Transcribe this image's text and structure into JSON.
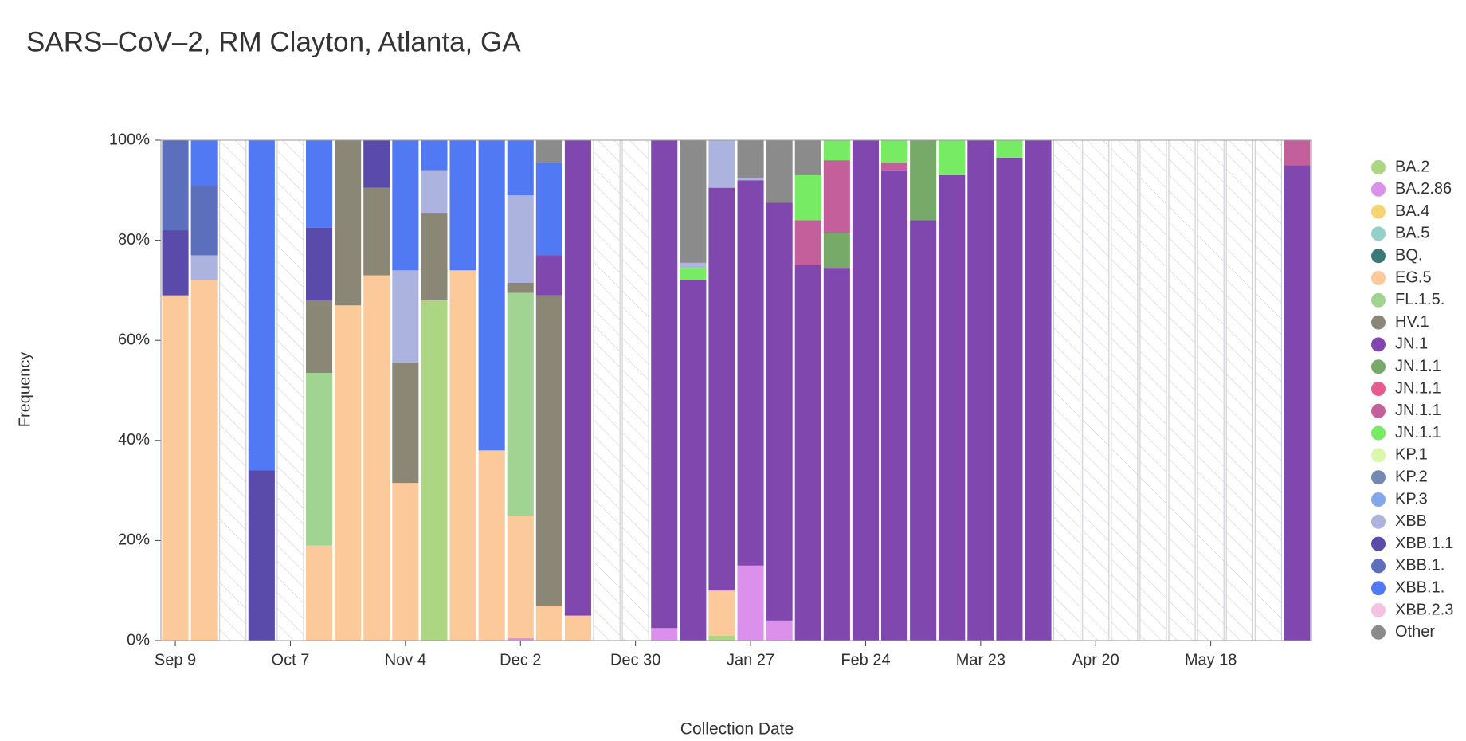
{
  "chart_data": {
    "type": "stacked-bar",
    "title": "SARS–CoV–2, RM Clayton, Atlanta, GA",
    "x_label": "Collection Date",
    "y_label": "Frequency",
    "categories": [
      "Sep 9",
      null,
      null,
      null,
      "Oct 7",
      null,
      null,
      null,
      "Nov 4",
      null,
      null,
      null,
      "Dec 2",
      null,
      null,
      null,
      "Dec 30",
      null,
      null,
      null,
      "Jan 27",
      null,
      null,
      null,
      "Feb 24",
      null,
      null,
      null,
      "Mar 23",
      null,
      null,
      null,
      "Apr 20",
      null,
      null,
      null,
      "May 18",
      null,
      null,
      null
    ],
    "ylim": [
      0,
      100
    ],
    "yticks": [
      {
        "value": 0,
        "label": "0%"
      },
      {
        "value": 20,
        "label": "20%"
      },
      {
        "value": 40,
        "label": "40%"
      },
      {
        "value": 60,
        "label": "60%"
      },
      {
        "value": 80,
        "label": "80%"
      },
      {
        "value": 100,
        "label": "100%"
      }
    ],
    "legend": "right",
    "series": [
      {
        "name": "BA.2",
        "color": "#9fcf6c",
        "values": [
          null,
          null,
          null,
          null,
          null,
          null,
          null,
          null,
          null,
          68,
          null,
          null,
          null,
          null,
          null,
          null,
          null,
          null,
          null,
          1,
          null,
          null,
          null,
          null,
          null,
          null,
          null,
          null,
          null,
          null,
          null,
          null,
          null,
          null,
          null,
          null,
          null,
          null,
          null,
          null
        ]
      },
      {
        "name": "BA.2.86",
        "color": "#d57de8",
        "values": [
          null,
          null,
          null,
          null,
          null,
          null,
          null,
          null,
          null,
          null,
          null,
          null,
          0.5,
          null,
          null,
          null,
          null,
          2.5,
          null,
          null,
          15,
          4,
          null,
          null,
          null,
          null,
          null,
          null,
          null,
          null,
          null,
          null,
          null,
          null,
          null,
          null,
          null,
          null,
          null,
          null
        ]
      },
      {
        "name": "BA.4",
        "color": "#f5cd5a",
        "values": [
          null,
          null,
          null,
          null,
          null,
          null,
          null,
          null,
          null,
          null,
          null,
          null,
          null,
          null,
          null,
          null,
          null,
          null,
          null,
          null,
          null,
          null,
          null,
          null,
          null,
          null,
          null,
          null,
          null,
          null,
          null,
          null,
          null,
          null,
          null,
          null,
          null,
          null,
          null,
          null
        ]
      },
      {
        "name": "BA.5",
        "color": "#80c8c0",
        "values": [
          null,
          null,
          null,
          null,
          null,
          null,
          null,
          null,
          null,
          null,
          null,
          null,
          null,
          null,
          null,
          null,
          null,
          null,
          null,
          null,
          null,
          null,
          null,
          null,
          null,
          null,
          null,
          null,
          null,
          null,
          null,
          null,
          null,
          null,
          null,
          null,
          null,
          null,
          null,
          null
        ]
      },
      {
        "name": "BQ.",
        "color": "#17615f",
        "values": [
          null,
          null,
          null,
          null,
          null,
          null,
          null,
          null,
          null,
          null,
          null,
          null,
          null,
          null,
          null,
          null,
          null,
          null,
          null,
          null,
          null,
          null,
          null,
          null,
          null,
          null,
          null,
          null,
          null,
          null,
          null,
          null,
          null,
          null,
          null,
          null,
          null,
          null,
          null,
          null
        ]
      },
      {
        "name": "EG.5",
        "color": "#fbbf88",
        "values": [
          69,
          72,
          null,
          null,
          null,
          19,
          67,
          73,
          31.5,
          null,
          74,
          38,
          24.5,
          7,
          5,
          null,
          null,
          null,
          null,
          9,
          null,
          null,
          null,
          null,
          null,
          null,
          null,
          null,
          null,
          null,
          null,
          null,
          null,
          null,
          null,
          null,
          null,
          null,
          null,
          null
        ]
      },
      {
        "name": "FL.1.5.",
        "color": "#90cc80",
        "values": [
          null,
          null,
          null,
          null,
          null,
          34.5,
          null,
          null,
          null,
          null,
          null,
          null,
          44.5,
          null,
          null,
          null,
          null,
          null,
          null,
          null,
          null,
          null,
          null,
          null,
          null,
          null,
          null,
          null,
          null,
          null,
          null,
          null,
          null,
          null,
          null,
          null,
          null,
          null,
          null,
          null
        ]
      },
      {
        "name": "HV.1",
        "color": "#77725f",
        "values": [
          null,
          null,
          null,
          null,
          null,
          14.5,
          33,
          17.5,
          24,
          17.5,
          null,
          null,
          2,
          62,
          null,
          null,
          null,
          null,
          null,
          null,
          null,
          null,
          null,
          null,
          null,
          null,
          null,
          null,
          null,
          null,
          null,
          null,
          null,
          null,
          null,
          null,
          null,
          null,
          null,
          null
        ]
      },
      {
        "name": "JN.1",
        "color": "#6a28a0",
        "values": [
          null,
          null,
          null,
          null,
          null,
          null,
          null,
          null,
          null,
          null,
          null,
          null,
          null,
          8,
          95,
          null,
          null,
          97.5,
          72,
          80.5,
          77,
          83.5,
          75,
          74.5,
          100,
          94,
          84,
          93,
          100,
          96.5,
          100,
          null,
          null,
          null,
          null,
          null,
          null,
          null,
          null,
          95
        ]
      },
      {
        "name": "JN.1.1",
        "color": "#5f9a4f",
        "values": [
          null,
          null,
          null,
          null,
          null,
          null,
          null,
          null,
          null,
          null,
          null,
          null,
          null,
          null,
          null,
          null,
          null,
          null,
          null,
          null,
          null,
          null,
          null,
          7,
          null,
          null,
          16,
          null,
          null,
          null,
          null,
          null,
          null,
          null,
          null,
          null,
          null,
          null,
          null,
          null
        ]
      },
      {
        "name": "JN.1.1",
        "color": "#e2407a",
        "values": [
          null,
          null,
          null,
          null,
          null,
          null,
          null,
          null,
          null,
          null,
          null,
          null,
          null,
          null,
          null,
          null,
          null,
          null,
          null,
          null,
          null,
          null,
          null,
          null,
          null,
          null,
          null,
          null,
          null,
          null,
          null,
          null,
          null,
          null,
          null,
          null,
          null,
          null,
          null,
          null
        ]
      },
      {
        "name": "JN.1.1",
        "color": "#b8448a",
        "values": [
          null,
          null,
          null,
          null,
          null,
          null,
          null,
          null,
          null,
          null,
          null,
          null,
          null,
          null,
          null,
          null,
          null,
          null,
          null,
          null,
          null,
          null,
          9,
          14.5,
          null,
          1.5,
          null,
          null,
          null,
          null,
          null,
          null,
          null,
          null,
          null,
          null,
          null,
          null,
          null,
          5
        ]
      },
      {
        "name": "JN.1.1",
        "color": "#60e84a",
        "values": [
          null,
          null,
          null,
          null,
          null,
          null,
          null,
          null,
          null,
          null,
          null,
          null,
          null,
          null,
          null,
          null,
          null,
          null,
          2.5,
          null,
          null,
          null,
          9,
          4,
          null,
          4.5,
          null,
          7,
          null,
          3.5,
          null,
          null,
          null,
          null,
          null,
          null,
          null,
          null,
          null,
          null
        ]
      },
      {
        "name": "KP.1",
        "color": "#d4f79a",
        "values": [
          null,
          null,
          null,
          null,
          null,
          null,
          null,
          null,
          null,
          null,
          null,
          null,
          null,
          null,
          null,
          null,
          null,
          null,
          null,
          null,
          null,
          null,
          null,
          null,
          null,
          null,
          null,
          null,
          null,
          null,
          null,
          null,
          null,
          null,
          null,
          null,
          null,
          null,
          null,
          null
        ]
      },
      {
        "name": "KP.2",
        "color": "#5a74a6",
        "values": [
          null,
          null,
          null,
          null,
          null,
          null,
          null,
          null,
          null,
          null,
          null,
          null,
          null,
          null,
          null,
          null,
          null,
          null,
          null,
          null,
          null,
          null,
          null,
          null,
          null,
          null,
          null,
          null,
          null,
          null,
          null,
          null,
          null,
          null,
          null,
          null,
          null,
          null,
          null,
          null
        ]
      },
      {
        "name": "KP.3",
        "color": "#6c99e6",
        "values": [
          null,
          null,
          null,
          null,
          null,
          null,
          null,
          null,
          null,
          null,
          null,
          null,
          null,
          null,
          null,
          null,
          null,
          null,
          null,
          null,
          null,
          null,
          null,
          null,
          null,
          null,
          null,
          null,
          null,
          null,
          null,
          null,
          null,
          null,
          null,
          null,
          null,
          null,
          null,
          null
        ]
      },
      {
        "name": "XBB",
        "color": "#9ca6d8",
        "values": [
          null,
          5,
          null,
          null,
          null,
          null,
          null,
          null,
          18.5,
          8.5,
          null,
          null,
          17.5,
          null,
          null,
          null,
          null,
          null,
          1,
          9.5,
          0.5,
          null,
          null,
          null,
          null,
          null,
          null,
          null,
          null,
          null,
          null,
          null,
          null,
          null,
          null,
          null,
          null,
          null,
          null,
          null
        ]
      },
      {
        "name": "XBB.1.1",
        "color": "#3d2a9a",
        "values": [
          13,
          null,
          null,
          34,
          null,
          14.5,
          null,
          9.5,
          null,
          null,
          null,
          null,
          null,
          null,
          null,
          null,
          null,
          null,
          null,
          null,
          null,
          null,
          null,
          null,
          null,
          null,
          null,
          null,
          null,
          null,
          null,
          null,
          null,
          null,
          null,
          null,
          null,
          null,
          null,
          null
        ]
      },
      {
        "name": "XBB.1.",
        "color": "#3f56b2",
        "values": [
          18,
          14,
          null,
          null,
          null,
          null,
          null,
          null,
          null,
          null,
          null,
          null,
          null,
          null,
          null,
          null,
          null,
          null,
          null,
          null,
          null,
          null,
          null,
          null,
          null,
          null,
          null,
          null,
          null,
          null,
          null,
          null,
          null,
          null,
          null,
          null,
          null,
          null,
          null,
          null
        ]
      },
      {
        "name": "XBB.1.",
        "color": "#3362f2",
        "values": [
          null,
          9,
          null,
          66,
          null,
          17.5,
          null,
          null,
          26,
          6,
          26,
          62,
          11,
          18.5,
          null,
          null,
          null,
          null,
          null,
          null,
          null,
          null,
          null,
          null,
          null,
          null,
          null,
          null,
          null,
          null,
          null,
          null,
          null,
          null,
          null,
          null,
          null,
          null,
          null,
          null
        ]
      },
      {
        "name": "XBB.2.3",
        "color": "#f2b8dc",
        "values": [
          null,
          null,
          null,
          null,
          null,
          null,
          null,
          null,
          null,
          null,
          null,
          null,
          null,
          null,
          null,
          null,
          null,
          null,
          null,
          null,
          null,
          null,
          null,
          null,
          null,
          null,
          null,
          null,
          null,
          null,
          null,
          null,
          null,
          null,
          null,
          null,
          null,
          null,
          null,
          null
        ]
      },
      {
        "name": "Other",
        "color": "#777777",
        "values": [
          null,
          null,
          null,
          null,
          null,
          null,
          null,
          null,
          null,
          null,
          null,
          null,
          null,
          4.5,
          null,
          null,
          null,
          null,
          24.5,
          null,
          7.5,
          12.5,
          7,
          null,
          null,
          null,
          null,
          null,
          null,
          null,
          null,
          null,
          null,
          null,
          null,
          null,
          null,
          null,
          null,
          null
        ]
      }
    ]
  }
}
